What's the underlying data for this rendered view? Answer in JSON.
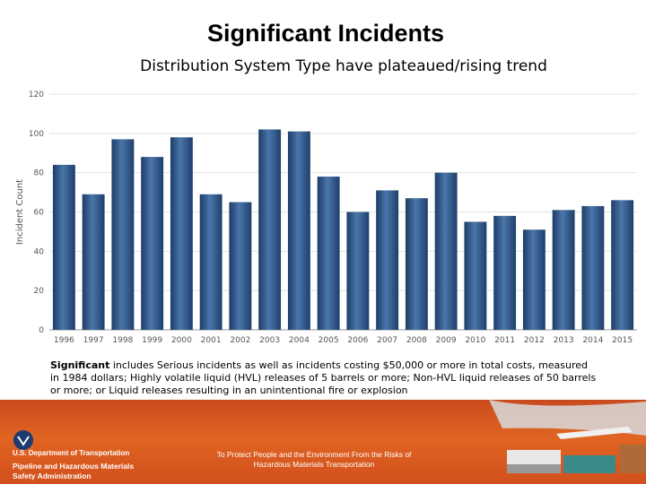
{
  "title": "Significant Incidents",
  "subtitle": "Distribution System Type have plateaued/rising trend",
  "chart_data": {
    "type": "bar",
    "categories": [
      "1996",
      "1997",
      "1998",
      "1999",
      "2000",
      "2001",
      "2002",
      "2003",
      "2004",
      "2005",
      "2006",
      "2007",
      "2008",
      "2009",
      "2010",
      "2011",
      "2012",
      "2013",
      "2014",
      "2015"
    ],
    "values": [
      84,
      69,
      97,
      88,
      98,
      69,
      65,
      102,
      101,
      78,
      60,
      71,
      67,
      80,
      55,
      58,
      51,
      61,
      63,
      66
    ],
    "ylabel": "Incident Count",
    "xlabel": "",
    "ylim": [
      0,
      120
    ],
    "yticks": [
      0,
      20,
      40,
      60,
      80,
      100,
      120
    ],
    "grid": true,
    "bar_color": "#2e5688"
  },
  "note": {
    "bold": "Significant",
    "text": " includes Serious incidents as well as incidents costing $50,000 or more in total costs, measured in 1984 dollars; Highly volatile liquid (HVL) releases of 5 barrels or more; Non-HVL liquid releases of 50 barrels or more; or Liquid releases resulting in an unintentional fire or explosion"
  },
  "footer": {
    "agency_line1": "U.S. Department of Transportation",
    "agency_line2": "Pipeline and Hazardous Materials",
    "agency_line3": "Safety Administration",
    "tagline_line1": "To Protect People and the Environment From the Risks of",
    "tagline_line2": "Hazardous Materials Transportation",
    "accent": "#d9581f"
  }
}
